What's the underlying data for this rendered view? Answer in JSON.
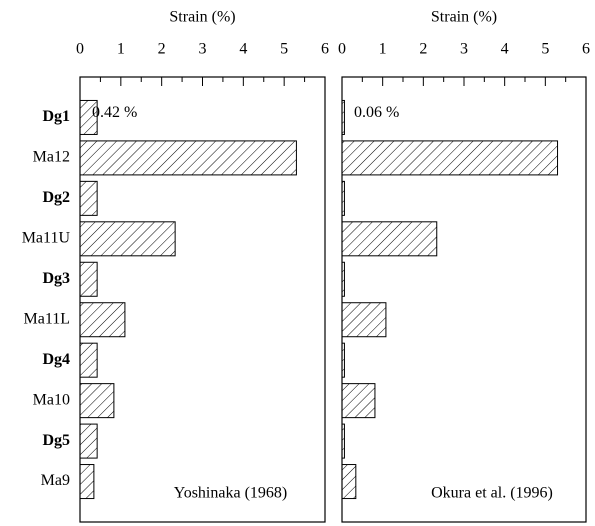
{
  "chart_data": [
    {
      "type": "bar",
      "orientation": "horizontal",
      "xlabel": "Strain (%)",
      "categories": [
        "Dg1",
        "Ma12",
        "Dg2",
        "Ma11U",
        "Dg3",
        "Ma11L",
        "Dg4",
        "Ma10",
        "Dg5",
        "Ma9"
      ],
      "values": [
        0.42,
        5.3,
        0.42,
        2.33,
        0.42,
        1.1,
        0.42,
        0.83,
        0.42,
        0.34
      ],
      "color": "#000000",
      "xlim": [
        0,
        6
      ],
      "xticks": [
        0,
        1,
        2,
        3,
        4,
        5,
        6
      ],
      "xminorticks": [
        0.5,
        1.5,
        2.5,
        3.5,
        4.5,
        5.5
      ],
      "annotations": [
        "0.42 %",
        "Yoshinaka (1968)"
      ]
    },
    {
      "type": "bar",
      "orientation": "horizontal",
      "xlabel": "Strain (%)",
      "values": [
        0.06,
        5.3,
        0.06,
        2.33,
        0.06,
        1.08,
        0.06,
        0.81,
        0.06,
        0.34
      ],
      "color": "#000000",
      "xlim": [
        0,
        6
      ],
      "xticks": [
        0,
        1,
        2,
        3,
        4,
        5,
        6
      ],
      "xminorticks": [
        0.5,
        1.5,
        2.5,
        3.5,
        4.5,
        5.5
      ],
      "annotations": [
        "0.06 %",
        "Okura et al. (1996)"
      ]
    }
  ]
}
